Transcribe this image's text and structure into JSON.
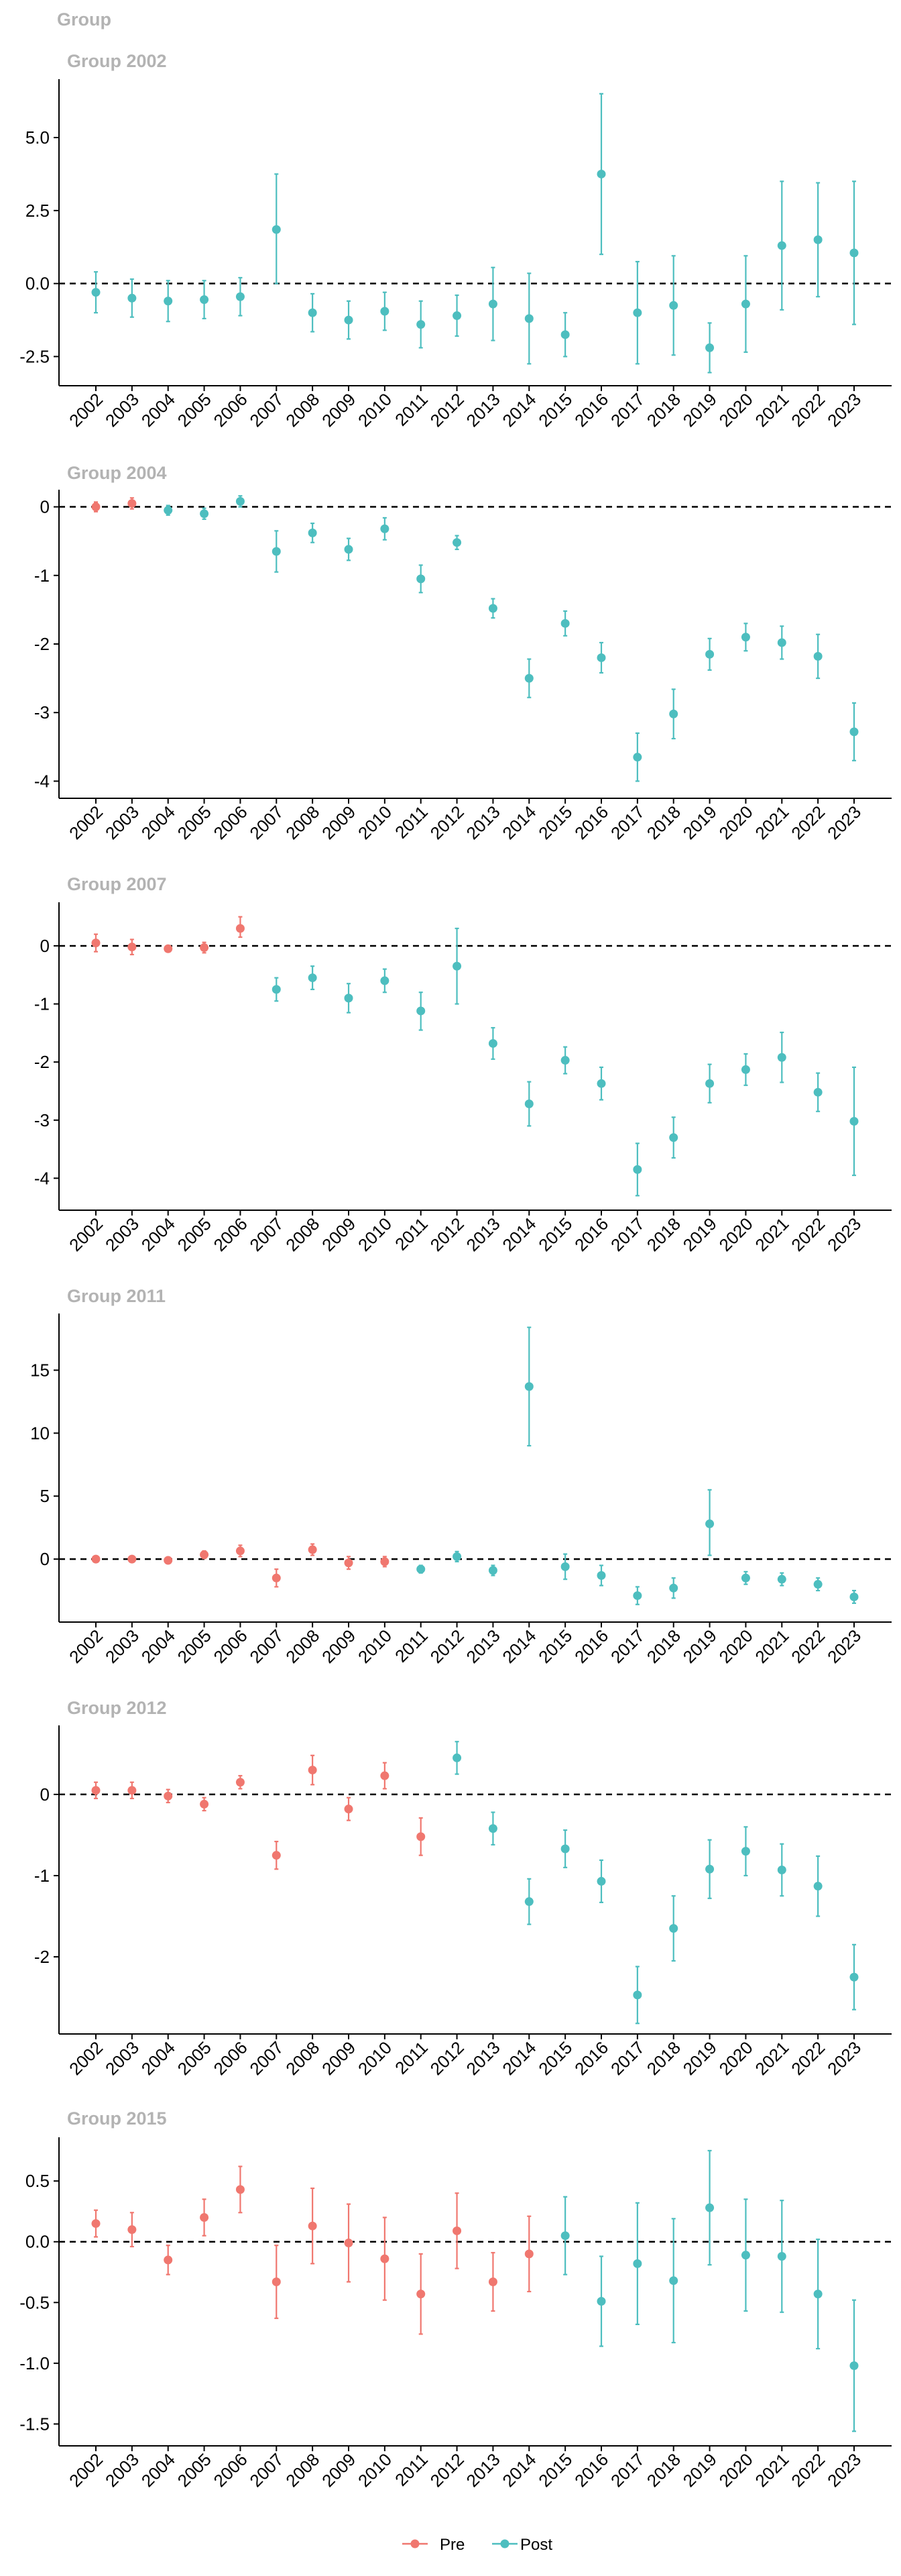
{
  "figure_title": "Group",
  "legend": {
    "items": [
      {
        "label": "Pre",
        "color": "#F0776F"
      },
      {
        "label": "Post",
        "color": "#4DBEBF"
      }
    ]
  },
  "chart_data": [
    {
      "type": "scatter",
      "title": "Group 2002",
      "ylim": [
        -3.5,
        7.0
      ],
      "yticks": [
        -2.5,
        0,
        2.5,
        5
      ],
      "ytick_labels": [
        "-2.5",
        "0.0",
        "2.5",
        "5.0"
      ],
      "reference_line": 0,
      "x": [
        "2002",
        "2003",
        "2004",
        "2005",
        "2006",
        "2007",
        "2008",
        "2009",
        "2010",
        "2011",
        "2012",
        "2013",
        "2014",
        "2015",
        "2016",
        "2017",
        "2018",
        "2019",
        "2020",
        "2021",
        "2022",
        "2023"
      ],
      "y": [
        -0.3,
        -0.5,
        -0.6,
        -0.55,
        -0.45,
        1.85,
        -1.0,
        -1.25,
        -0.95,
        -1.4,
        -1.1,
        -0.7,
        -1.2,
        -1.75,
        3.75,
        -1.0,
        -0.75,
        -2.2,
        -0.7,
        1.3,
        1.5,
        1.05
      ],
      "lo": [
        -1.0,
        -1.15,
        -1.3,
        -1.2,
        -1.1,
        0.0,
        -1.65,
        -1.9,
        -1.6,
        -2.2,
        -1.8,
        -1.95,
        -2.75,
        -2.5,
        1.0,
        -2.75,
        -2.45,
        -3.05,
        -2.35,
        -0.9,
        -0.45,
        -1.4
      ],
      "hi": [
        0.4,
        0.15,
        0.1,
        0.1,
        0.2,
        3.75,
        -0.35,
        -0.6,
        -0.3,
        -0.6,
        -0.4,
        0.55,
        0.35,
        -1.0,
        6.5,
        0.75,
        0.95,
        -1.35,
        0.95,
        3.5,
        3.45,
        3.5
      ],
      "group": [
        "Post",
        "Post",
        "Post",
        "Post",
        "Post",
        "Post",
        "Post",
        "Post",
        "Post",
        "Post",
        "Post",
        "Post",
        "Post",
        "Post",
        "Post",
        "Post",
        "Post",
        "Post",
        "Post",
        "Post",
        "Post",
        "Post"
      ]
    },
    {
      "type": "scatter",
      "title": "Group 2004",
      "ylim": [
        -4.25,
        0.25
      ],
      "yticks": [
        -4,
        -3,
        -2,
        -1,
        0
      ],
      "ytick_labels": [
        "-4",
        "-3",
        "-2",
        "-1",
        "0"
      ],
      "reference_line": 0,
      "x": [
        "2002",
        "2003",
        "2004",
        "2005",
        "2006",
        "2007",
        "2008",
        "2009",
        "2010",
        "2011",
        "2012",
        "2013",
        "2014",
        "2015",
        "2016",
        "2017",
        "2018",
        "2019",
        "2020",
        "2021",
        "2022",
        "2023"
      ],
      "y": [
        0.0,
        0.05,
        -0.05,
        -0.1,
        0.08,
        -0.65,
        -0.38,
        -0.62,
        -0.32,
        -1.05,
        -0.52,
        -1.48,
        -2.5,
        -1.7,
        -2.2,
        -3.65,
        -3.02,
        -2.15,
        -1.9,
        -1.98,
        -2.18,
        -3.28
      ],
      "lo": [
        -0.07,
        -0.03,
        -0.12,
        -0.18,
        0.0,
        -0.95,
        -0.52,
        -0.78,
        -0.48,
        -1.25,
        -0.62,
        -1.62,
        -2.78,
        -1.88,
        -2.42,
        -4.0,
        -3.38,
        -2.38,
        -2.1,
        -2.22,
        -2.5,
        -3.7
      ],
      "hi": [
        0.07,
        0.13,
        0.02,
        -0.02,
        0.16,
        -0.35,
        -0.24,
        -0.46,
        -0.16,
        -0.85,
        -0.42,
        -1.34,
        -2.22,
        -1.52,
        -1.98,
        -3.3,
        -2.66,
        -1.92,
        -1.7,
        -1.74,
        -1.86,
        -2.86
      ],
      "group": [
        "Pre",
        "Pre",
        "Post",
        "Post",
        "Post",
        "Post",
        "Post",
        "Post",
        "Post",
        "Post",
        "Post",
        "Post",
        "Post",
        "Post",
        "Post",
        "Post",
        "Post",
        "Post",
        "Post",
        "Post",
        "Post",
        "Post"
      ]
    },
    {
      "type": "scatter",
      "title": "Group 2007",
      "ylim": [
        -4.55,
        0.75
      ],
      "yticks": [
        -4,
        -3,
        -2,
        -1,
        0
      ],
      "ytick_labels": [
        "-4",
        "-3",
        "-2",
        "-1",
        "0"
      ],
      "reference_line": 0,
      "x": [
        "2002",
        "2003",
        "2004",
        "2005",
        "2006",
        "2007",
        "2008",
        "2009",
        "2010",
        "2011",
        "2012",
        "2013",
        "2014",
        "2015",
        "2016",
        "2017",
        "2018",
        "2019",
        "2020",
        "2021",
        "2022",
        "2023"
      ],
      "y": [
        0.05,
        -0.02,
        -0.05,
        -0.03,
        0.3,
        -0.75,
        -0.55,
        -0.9,
        -0.6,
        -1.12,
        -0.35,
        -1.68,
        -2.72,
        -1.97,
        -2.37,
        -3.85,
        -3.3,
        -2.37,
        -2.13,
        -1.92,
        -2.52,
        -3.02
      ],
      "lo": [
        -0.1,
        -0.15,
        -0.1,
        -0.12,
        0.15,
        -0.95,
        -0.75,
        -1.15,
        -0.8,
        -1.45,
        -1.0,
        -1.95,
        -3.1,
        -2.2,
        -2.65,
        -4.3,
        -3.65,
        -2.7,
        -2.4,
        -2.35,
        -2.85,
        -3.95
      ],
      "hi": [
        0.2,
        0.11,
        0.0,
        0.06,
        0.5,
        -0.55,
        -0.35,
        -0.65,
        -0.4,
        -0.8,
        0.3,
        -1.41,
        -2.34,
        -1.74,
        -2.09,
        -3.4,
        -2.95,
        -2.04,
        -1.86,
        -1.49,
        -2.19,
        -2.09
      ],
      "group": [
        "Pre",
        "Pre",
        "Pre",
        "Pre",
        "Pre",
        "Post",
        "Post",
        "Post",
        "Post",
        "Post",
        "Post",
        "Post",
        "Post",
        "Post",
        "Post",
        "Post",
        "Post",
        "Post",
        "Post",
        "Post",
        "Post",
        "Post"
      ]
    },
    {
      "type": "scatter",
      "title": "Group 2011",
      "ylim": [
        -5.0,
        19.5
      ],
      "yticks": [
        0,
        5,
        10,
        15
      ],
      "ytick_labels": [
        "0",
        "5",
        "10",
        "15"
      ],
      "reference_line": 0,
      "x": [
        "2002",
        "2003",
        "2004",
        "2005",
        "2006",
        "2007",
        "2008",
        "2009",
        "2010",
        "2011",
        "2012",
        "2013",
        "2014",
        "2015",
        "2016",
        "2017",
        "2018",
        "2019",
        "2020",
        "2021",
        "2022",
        "2023"
      ],
      "y": [
        0.0,
        0.0,
        -0.1,
        0.35,
        0.65,
        -1.5,
        0.75,
        -0.3,
        -0.2,
        -0.8,
        0.2,
        -0.9,
        13.7,
        -0.6,
        -1.3,
        -2.9,
        -2.3,
        2.8,
        -1.5,
        -1.6,
        -2.0,
        -3.0
      ],
      "lo": [
        -0.15,
        -0.15,
        -0.3,
        0.05,
        0.2,
        -2.2,
        0.3,
        -0.8,
        -0.6,
        -1.1,
        -0.2,
        -1.3,
        9.0,
        -1.6,
        -2.1,
        -3.6,
        -3.1,
        0.3,
        -2.0,
        -2.1,
        -2.5,
        -3.5
      ],
      "hi": [
        0.15,
        0.15,
        0.1,
        0.65,
        1.1,
        -0.8,
        1.2,
        0.2,
        0.2,
        -0.5,
        0.6,
        -0.5,
        18.4,
        0.4,
        -0.5,
        -2.2,
        -1.5,
        5.5,
        -1.0,
        -1.1,
        -1.5,
        -2.5
      ],
      "group": [
        "Pre",
        "Pre",
        "Pre",
        "Pre",
        "Pre",
        "Pre",
        "Pre",
        "Pre",
        "Pre",
        "Post",
        "Post",
        "Post",
        "Post",
        "Post",
        "Post",
        "Post",
        "Post",
        "Post",
        "Post",
        "Post",
        "Post",
        "Post"
      ]
    },
    {
      "type": "scatter",
      "title": "Group 2012",
      "ylim": [
        -2.95,
        0.85
      ],
      "yticks": [
        -2,
        -1,
        0
      ],
      "ytick_labels": [
        "-2",
        "-1",
        "0"
      ],
      "reference_line": 0,
      "x": [
        "2002",
        "2003",
        "2004",
        "2005",
        "2006",
        "2007",
        "2008",
        "2009",
        "2010",
        "2011",
        "2012",
        "2013",
        "2014",
        "2015",
        "2016",
        "2017",
        "2018",
        "2019",
        "2020",
        "2021",
        "2022",
        "2023"
      ],
      "y": [
        0.05,
        0.05,
        -0.02,
        -0.12,
        0.15,
        -0.75,
        0.3,
        -0.18,
        0.23,
        -0.52,
        0.45,
        -0.42,
        -1.32,
        -0.67,
        -1.07,
        -2.47,
        -1.65,
        -0.92,
        -0.7,
        -0.93,
        -1.13,
        -2.25
      ],
      "lo": [
        -0.05,
        -0.05,
        -0.1,
        -0.2,
        0.07,
        -0.92,
        0.12,
        -0.32,
        0.07,
        -0.75,
        0.25,
        -0.62,
        -1.6,
        -0.9,
        -1.33,
        -2.82,
        -2.05,
        -1.28,
        -1.0,
        -1.25,
        -1.5,
        -2.65
      ],
      "hi": [
        0.15,
        0.15,
        0.06,
        -0.04,
        0.23,
        -0.58,
        0.48,
        -0.04,
        0.39,
        -0.29,
        0.65,
        -0.22,
        -1.04,
        -0.44,
        -0.81,
        -2.12,
        -1.25,
        -0.56,
        -0.4,
        -0.61,
        -0.76,
        -1.85
      ],
      "group": [
        "Pre",
        "Pre",
        "Pre",
        "Pre",
        "Pre",
        "Pre",
        "Pre",
        "Pre",
        "Pre",
        "Pre",
        "Post",
        "Post",
        "Post",
        "Post",
        "Post",
        "Post",
        "Post",
        "Post",
        "Post",
        "Post",
        "Post",
        "Post"
      ]
    },
    {
      "type": "scatter",
      "title": "Group 2015",
      "ylim": [
        -1.68,
        0.86
      ],
      "yticks": [
        -1.5,
        -1.0,
        -0.5,
        0.0,
        0.5
      ],
      "ytick_labels": [
        "-1.5",
        "-1.0",
        "-0.5",
        "0.0",
        "0.5"
      ],
      "reference_line": 0,
      "x": [
        "2002",
        "2003",
        "2004",
        "2005",
        "2006",
        "2007",
        "2008",
        "2009",
        "2010",
        "2011",
        "2012",
        "2013",
        "2014",
        "2015",
        "2016",
        "2017",
        "2018",
        "2019",
        "2020",
        "2021",
        "2022",
        "2023"
      ],
      "y": [
        0.15,
        0.1,
        -0.15,
        0.2,
        0.43,
        -0.33,
        0.13,
        -0.01,
        -0.14,
        -0.43,
        0.09,
        -0.33,
        -0.1,
        0.05,
        -0.49,
        -0.18,
        -0.32,
        0.28,
        -0.11,
        -0.12,
        -0.43,
        -1.02
      ],
      "lo": [
        0.04,
        -0.04,
        -0.27,
        0.05,
        0.24,
        -0.63,
        -0.18,
        -0.33,
        -0.48,
        -0.76,
        -0.22,
        -0.57,
        -0.41,
        -0.27,
        -0.86,
        -0.68,
        -0.83,
        -0.19,
        -0.57,
        -0.58,
        -0.88,
        -1.56
      ],
      "hi": [
        0.26,
        0.24,
        -0.03,
        0.35,
        0.62,
        -0.03,
        0.44,
        0.31,
        0.2,
        -0.1,
        0.4,
        -0.09,
        0.21,
        0.37,
        -0.12,
        0.32,
        0.19,
        0.75,
        0.35,
        0.34,
        0.02,
        -0.48
      ],
      "group": [
        "Pre",
        "Pre",
        "Pre",
        "Pre",
        "Pre",
        "Pre",
        "Pre",
        "Pre",
        "Pre",
        "Pre",
        "Pre",
        "Pre",
        "Pre",
        "Post",
        "Post",
        "Post",
        "Post",
        "Post",
        "Post",
        "Post",
        "Post",
        "Post"
      ]
    }
  ]
}
